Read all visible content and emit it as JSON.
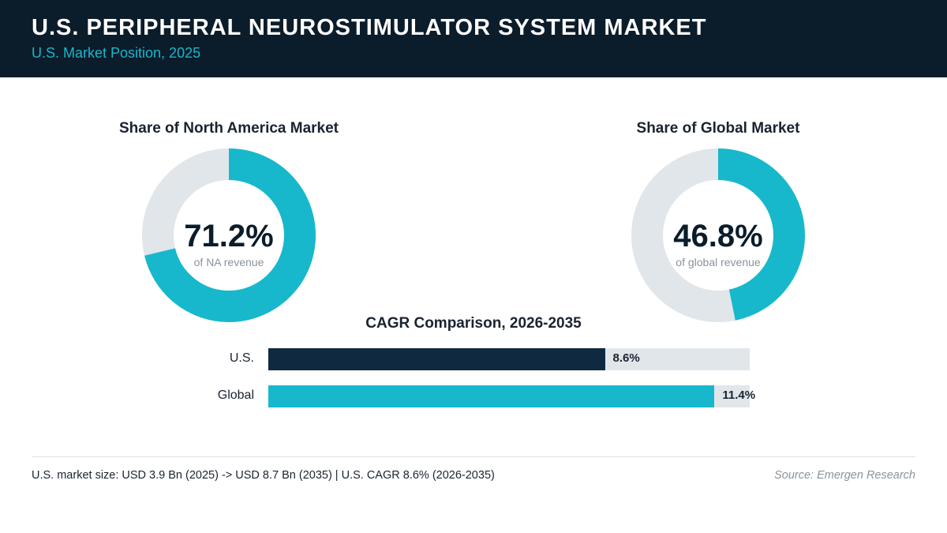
{
  "header": {
    "title": "U.S. PERIPHERAL NEUROSTIMULATOR SYSTEM MARKET",
    "subtitle": "U.S. Market Position, 2025"
  },
  "colors": {
    "header_bg": "#0b1c2a",
    "accent": "#17b8cc",
    "navy": "#0f2a40",
    "track": "#e1e6eb"
  },
  "chart_data": [
    {
      "type": "pie",
      "title": "Share of North America Market",
      "value": 71.2,
      "value_label": "71.2%",
      "caption": "of NA revenue"
    },
    {
      "type": "pie",
      "title": "Share of Global Market",
      "value": 46.8,
      "value_label": "46.8%",
      "caption": "of global revenue"
    },
    {
      "type": "bar",
      "title": "CAGR Comparison, 2026-2035",
      "categories": [
        "U.S.",
        "Global"
      ],
      "values": [
        8.6,
        11.4
      ],
      "value_labels": [
        "8.6%",
        "11.4%"
      ],
      "xlim": [
        0,
        12.3
      ]
    }
  ],
  "footer": {
    "note": "U.S. market size: USD 3.9 Bn (2025) -> USD 8.7 Bn (2035)  |  U.S. CAGR 8.6% (2026-2035)",
    "source": "Source: Emergen Research"
  }
}
